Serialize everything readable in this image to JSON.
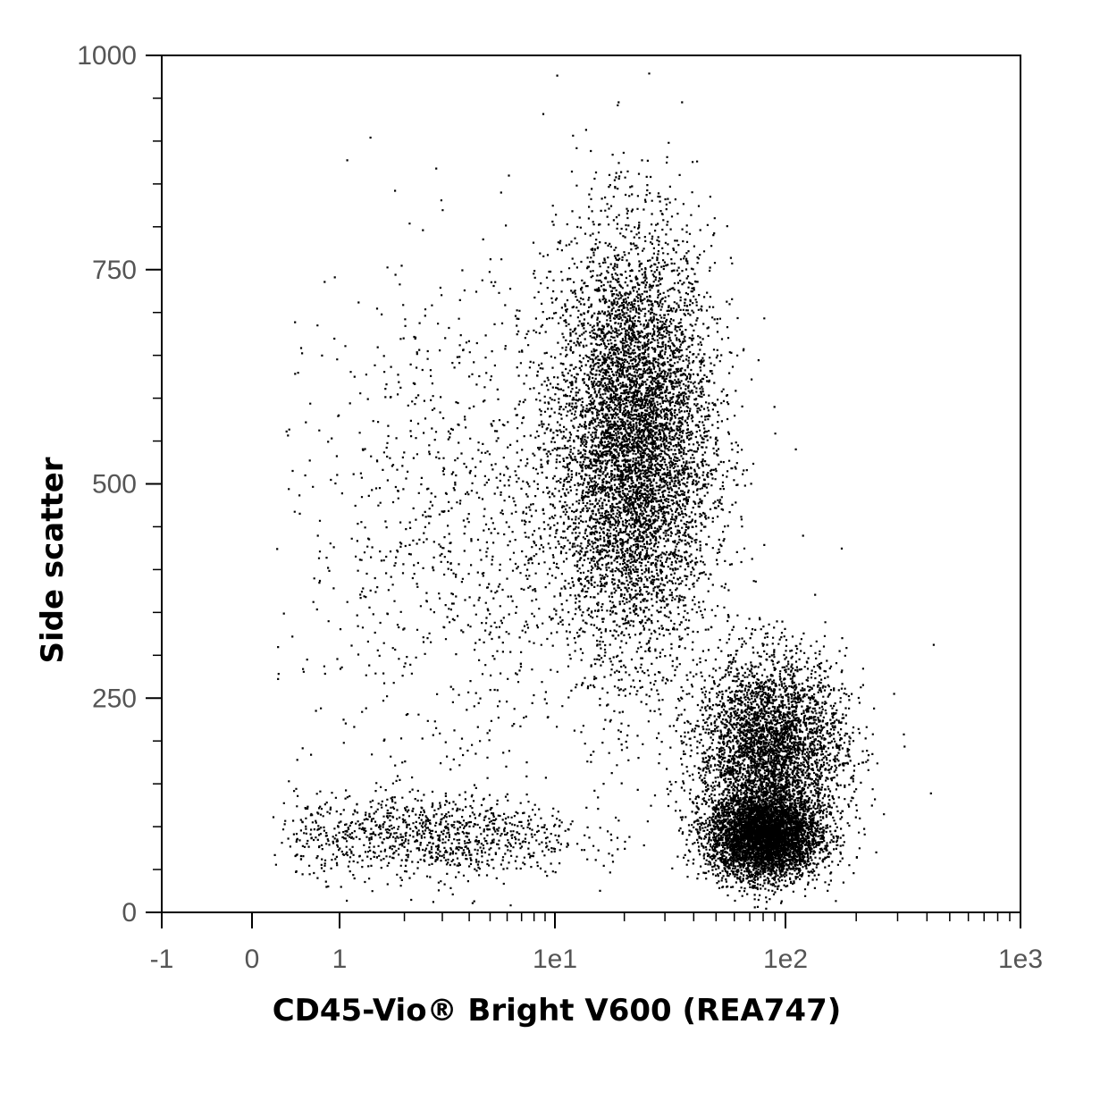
{
  "chart_data": {
    "type": "scatter",
    "title": "",
    "xlabel": "CD45-Vio® Bright V600 (REA747)",
    "ylabel": "Side scatter",
    "x_scale": "biexponential",
    "x_ticks": [
      {
        "value": -1,
        "label": "-1"
      },
      {
        "value": 0,
        "label": "0"
      },
      {
        "value": 1,
        "label": "1"
      },
      {
        "value": 10,
        "label": "1e1"
      },
      {
        "value": 100,
        "label": "1e2"
      },
      {
        "value": 1000,
        "label": "1e3"
      }
    ],
    "y_ticks": [
      {
        "value": 0,
        "label": "0"
      },
      {
        "value": 250,
        "label": "250"
      },
      {
        "value": 500,
        "label": "500"
      },
      {
        "value": 750,
        "label": "750"
      },
      {
        "value": 1000,
        "label": "1000"
      }
    ],
    "xlim": [
      -1,
      1000
    ],
    "ylim": [
      0,
      1000
    ],
    "grid": false,
    "legend": "none",
    "point_color": "#000000",
    "populations": [
      {
        "x_center": 22,
        "y_center": 550,
        "x_spread_decades": 0.17,
        "y_spread": 120,
        "share": 0.55
      },
      {
        "x_center": 80,
        "y_center": 90,
        "x_spread_decades": 0.12,
        "y_spread": 25,
        "share": 0.18
      },
      {
        "x_center": 85,
        "y_center": 190,
        "x_spread_decades": 0.16,
        "y_spread": 55,
        "share": 0.15
      },
      {
        "x_center": 2.5,
        "y_center": 90,
        "x_spread_decades": 0.35,
        "y_spread": 25,
        "share": 0.04
      },
      {
        "x_center": 5,
        "y_center": 450,
        "x_spread_decades": 0.45,
        "y_spread": 150,
        "share": 0.05
      }
    ]
  }
}
